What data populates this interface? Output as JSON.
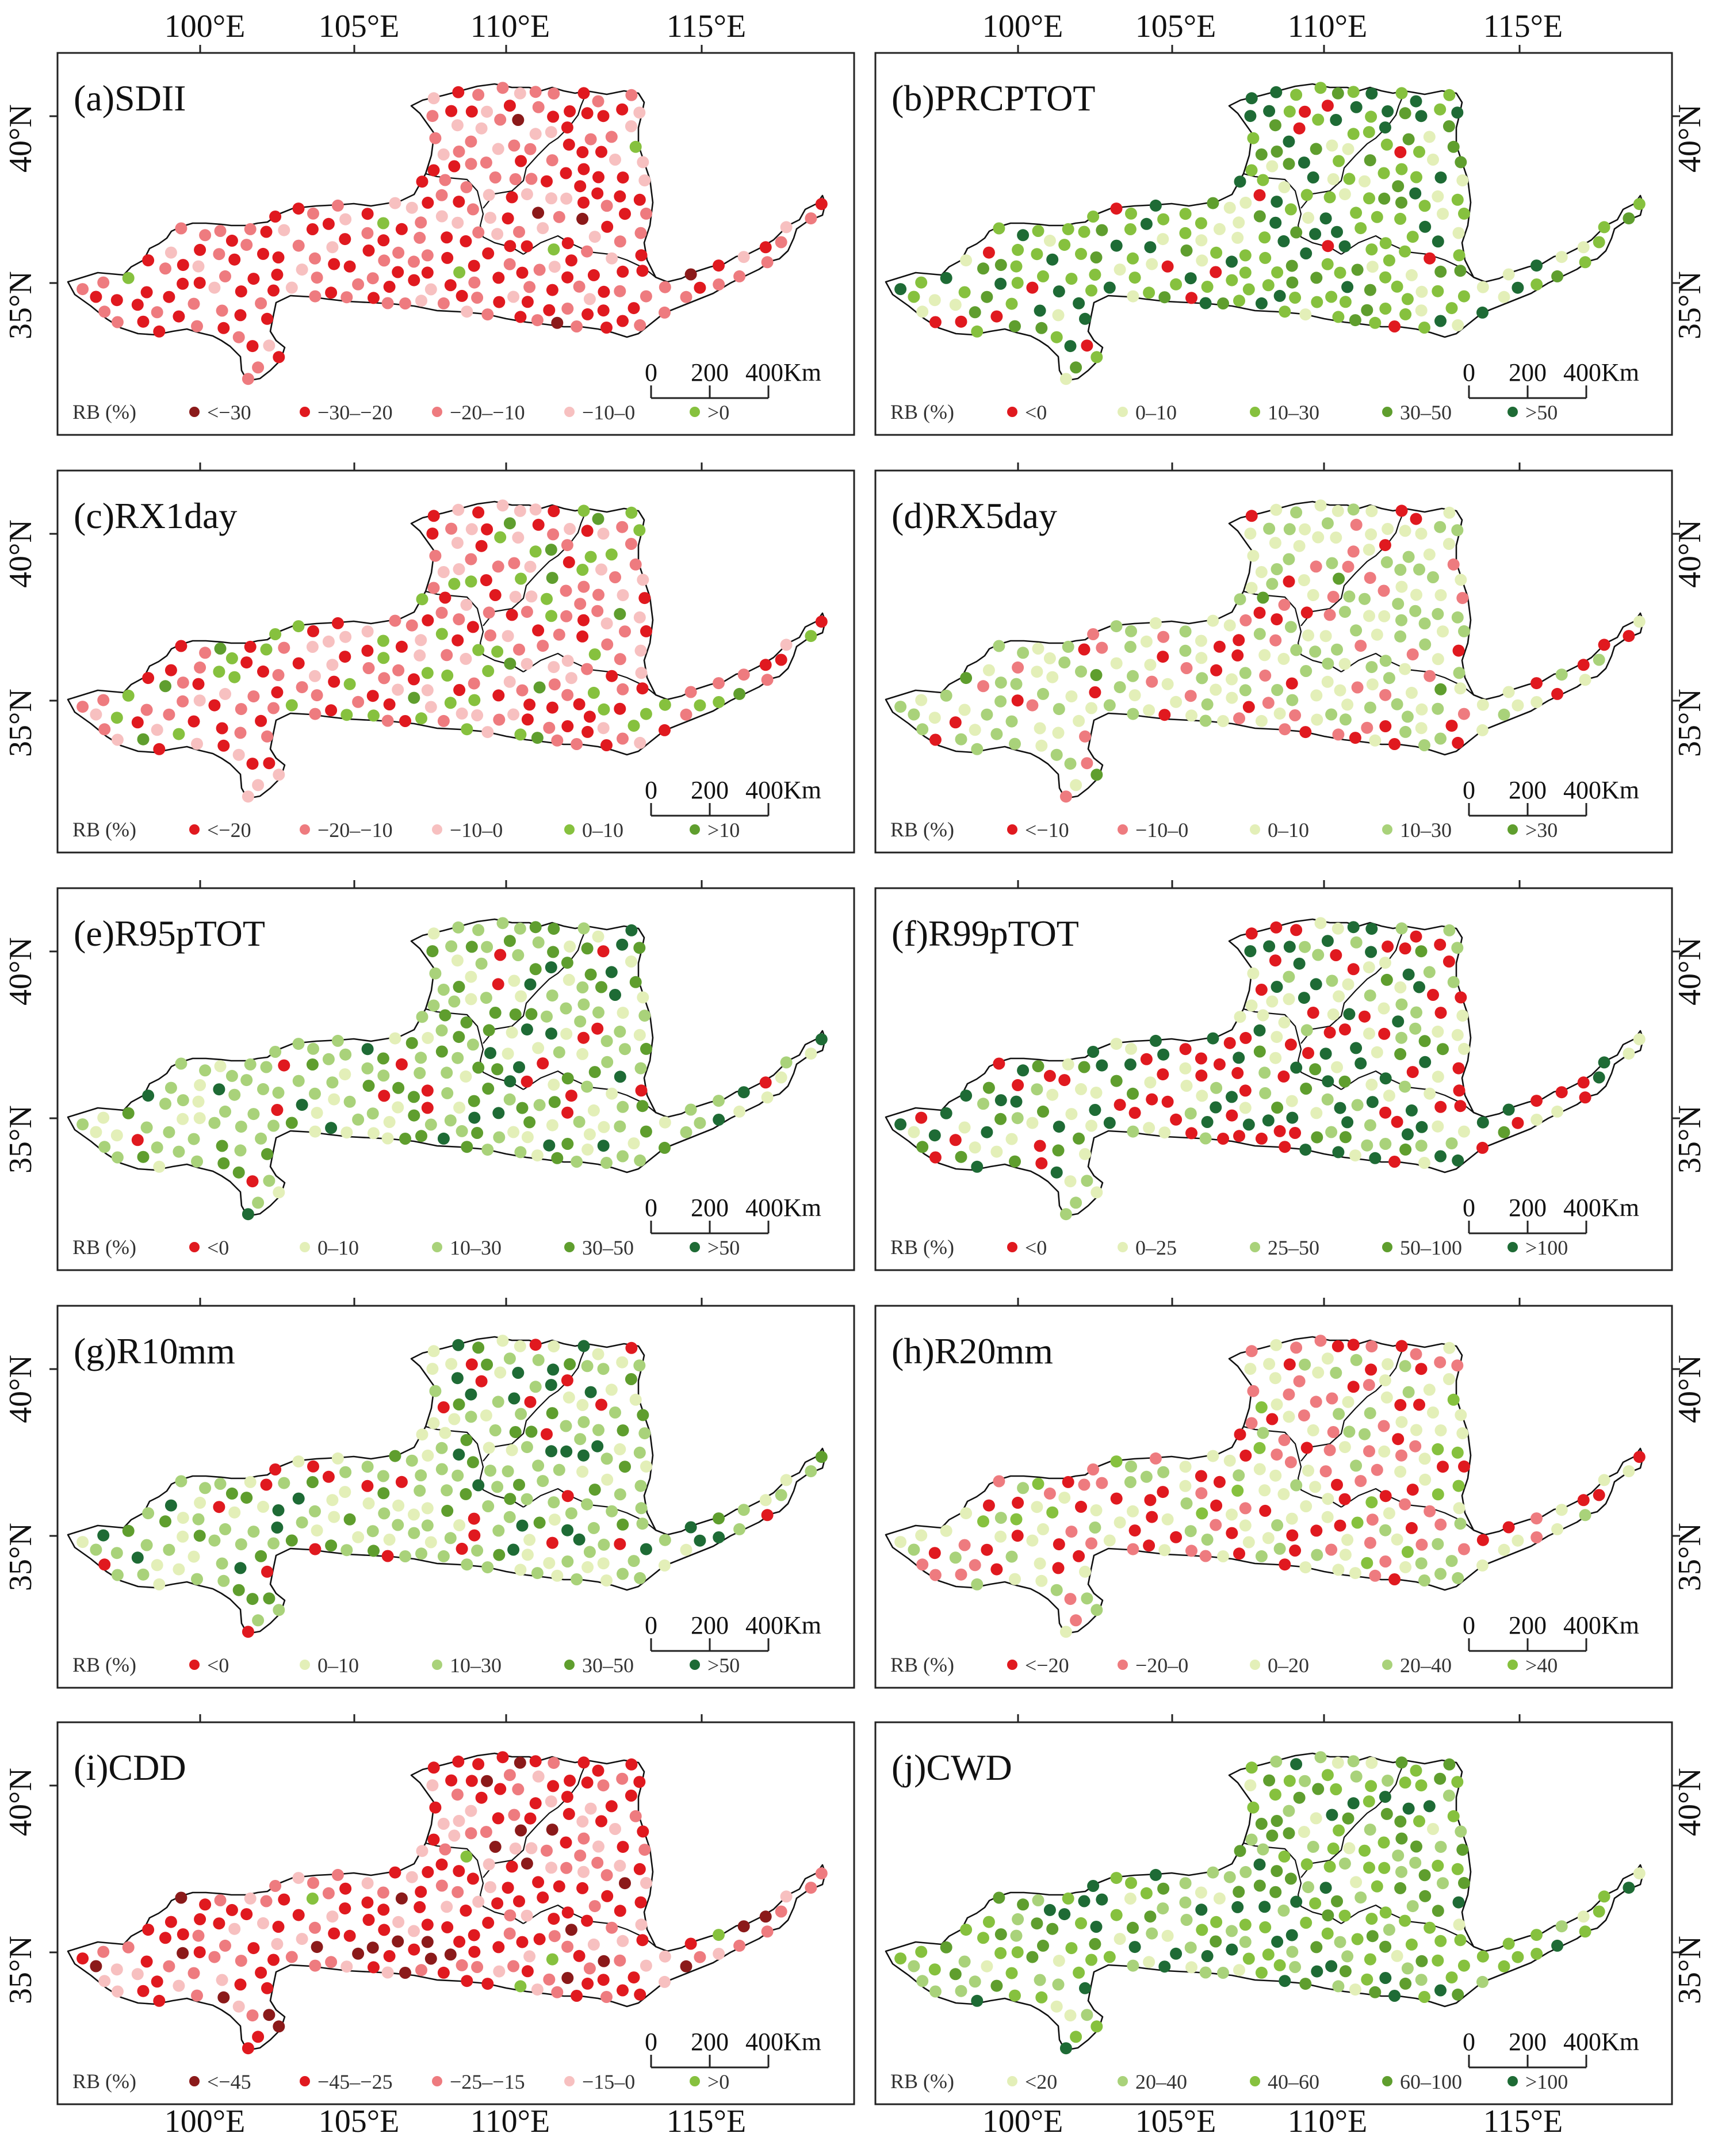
{
  "axes": {
    "top_lon": [
      "100°E",
      "105°E",
      "110°E",
      "115°E"
    ],
    "bottom_lon": [
      "100°E",
      "105°E",
      "110°E",
      "115°E"
    ],
    "lat": [
      "40°N",
      "35°N"
    ]
  },
  "scalebar": {
    "t0": "0",
    "t1": "200",
    "t2": "400Km"
  },
  "legend_title": "RB (%)",
  "colors": {
    "darkred": "#8b1a1a",
    "red": "#e0191f",
    "pink": "#ee7b7f",
    "lightpink": "#f7c0c0",
    "lightgreen": "#e3efb8",
    "lg2": "#a9d27a",
    "green": "#86c13e",
    "midgreen": "#5f9e2e",
    "darkgreen": "#1e6b35",
    "outline": "#111111"
  },
  "panels": [
    {
      "id": "a",
      "title": "(a)SDII",
      "legend": [
        {
          "label": "<−30",
          "color": "#8b1a1a"
        },
        {
          "label": "−30–−20",
          "color": "#e0191f"
        },
        {
          "label": "−20–−10",
          "color": "#ee7b7f"
        },
        {
          "label": "−10–0",
          "color": "#f7c0c0"
        },
        {
          "label": ">0",
          "color": "#86c13e"
        }
      ],
      "mix": [
        0.02,
        0.45,
        0.33,
        0.17,
        0.03
      ]
    },
    {
      "id": "b",
      "title": "(b)PRCPTOT",
      "legend": [
        {
          "label": "<0",
          "color": "#e0191f"
        },
        {
          "label": "0–10",
          "color": "#e3efb8"
        },
        {
          "label": "10–30",
          "color": "#86c13e"
        },
        {
          "label": "30–50",
          "color": "#5f9e2e"
        },
        {
          "label": ">50",
          "color": "#1e6b35"
        }
      ],
      "mix": [
        0.04,
        0.16,
        0.46,
        0.16,
        0.18
      ]
    },
    {
      "id": "c",
      "title": "(c)RX1day",
      "legend": [
        {
          "label": "<−20",
          "color": "#e0191f"
        },
        {
          "label": "−20–−10",
          "color": "#ee7b7f"
        },
        {
          "label": "−10–0",
          "color": "#f7c0c0"
        },
        {
          "label": "0–10",
          "color": "#86c13e"
        },
        {
          "label": ">10",
          "color": "#5f9e2e"
        }
      ],
      "mix": [
        0.25,
        0.28,
        0.22,
        0.17,
        0.08
      ]
    },
    {
      "id": "d",
      "title": "(d)RX5day",
      "legend": [
        {
          "label": "<−10",
          "color": "#e0191f"
        },
        {
          "label": "−10–0",
          "color": "#ee7b7f"
        },
        {
          "label": "0–10",
          "color": "#e3efb8"
        },
        {
          "label": "10–30",
          "color": "#a9d27a"
        },
        {
          "label": ">30",
          "color": "#5f9e2e"
        }
      ],
      "mix": [
        0.12,
        0.2,
        0.3,
        0.32,
        0.06
      ]
    },
    {
      "id": "e",
      "title": "(e)R95pTOT",
      "legend": [
        {
          "label": "<0",
          "color": "#e0191f"
        },
        {
          "label": "0–10",
          "color": "#e3efb8"
        },
        {
          "label": "10–30",
          "color": "#a9d27a"
        },
        {
          "label": "30–50",
          "color": "#5f9e2e"
        },
        {
          "label": ">50",
          "color": "#1e6b35"
        }
      ],
      "mix": [
        0.1,
        0.18,
        0.4,
        0.18,
        0.14
      ]
    },
    {
      "id": "f",
      "title": "(f)R99pTOT",
      "legend": [
        {
          "label": "<0",
          "color": "#e0191f"
        },
        {
          "label": "0–25",
          "color": "#e3efb8"
        },
        {
          "label": "25–50",
          "color": "#a9d27a"
        },
        {
          "label": "50–100",
          "color": "#5f9e2e"
        },
        {
          "label": ">100",
          "color": "#1e6b35"
        }
      ],
      "mix": [
        0.28,
        0.2,
        0.16,
        0.12,
        0.24
      ]
    },
    {
      "id": "g",
      "title": "(g)R10mm",
      "legend": [
        {
          "label": "<0",
          "color": "#e0191f"
        },
        {
          "label": "0–10",
          "color": "#e3efb8"
        },
        {
          "label": "10–30",
          "color": "#a9d27a"
        },
        {
          "label": "30–50",
          "color": "#5f9e2e"
        },
        {
          "label": ">50",
          "color": "#1e6b35"
        }
      ],
      "mix": [
        0.1,
        0.24,
        0.38,
        0.16,
        0.12
      ]
    },
    {
      "id": "h",
      "title": "(h)R20mm",
      "legend": [
        {
          "label": "<−20",
          "color": "#e0191f"
        },
        {
          "label": "−20–0",
          "color": "#ee7b7f"
        },
        {
          "label": "0–20",
          "color": "#e3efb8"
        },
        {
          "label": "20–40",
          "color": "#a9d27a"
        },
        {
          "label": ">40",
          "color": "#86c13e"
        }
      ],
      "mix": [
        0.24,
        0.3,
        0.26,
        0.14,
        0.06
      ]
    },
    {
      "id": "i",
      "title": "(i)CDD",
      "legend": [
        {
          "label": "<−45",
          "color": "#8b1a1a"
        },
        {
          "label": "−45–−25",
          "color": "#e0191f"
        },
        {
          "label": "−25–−15",
          "color": "#ee7b7f"
        },
        {
          "label": "−15–0",
          "color": "#f7c0c0"
        },
        {
          "label": ">0",
          "color": "#86c13e"
        }
      ],
      "mix": [
        0.14,
        0.4,
        0.24,
        0.2,
        0.02
      ]
    },
    {
      "id": "j",
      "title": "(j)CWD",
      "legend": [
        {
          "label": "<20",
          "color": "#e3efb8"
        },
        {
          "label": "20–40",
          "color": "#a9d27a"
        },
        {
          "label": "40–60",
          "color": "#86c13e"
        },
        {
          "label": "60–100",
          "color": "#5f9e2e"
        },
        {
          "label": ">100",
          "color": "#1e6b35"
        }
      ],
      "mix": [
        0.12,
        0.22,
        0.3,
        0.22,
        0.14
      ]
    }
  ]
}
